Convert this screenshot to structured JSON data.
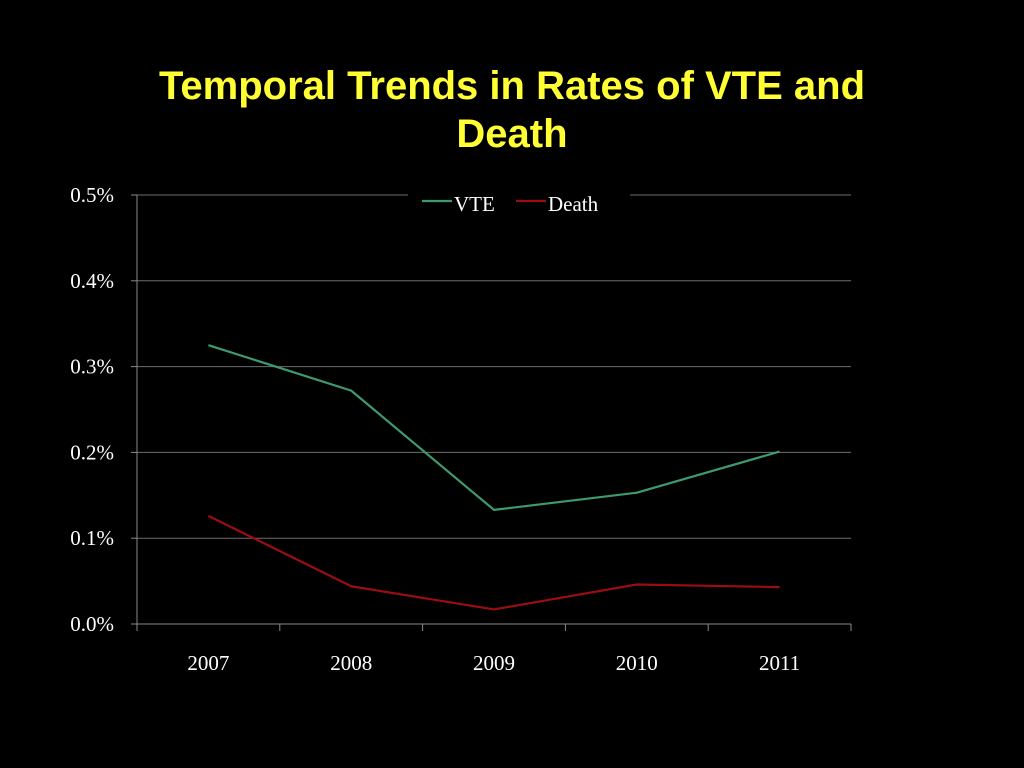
{
  "slide": {
    "title_line1": "Temporal Trends in Rates of VTE and",
    "title_line2": "Death",
    "title_color": "#ffff33"
  },
  "chart_data": {
    "type": "line",
    "title": "Temporal Trends in Rates of VTE and Death",
    "xlabel": "",
    "ylabel": "",
    "categories": [
      "2007",
      "2008",
      "2009",
      "2010",
      "2011"
    ],
    "ylim": [
      0,
      0.005
    ],
    "yticks": [
      "0.0%",
      "0.1%",
      "0.2%",
      "0.3%",
      "0.4%",
      "0.5%"
    ],
    "ytick_values": [
      0,
      0.001,
      0.002,
      0.003,
      0.004,
      0.005
    ],
    "grid": true,
    "legend_position": "top-center",
    "series": [
      {
        "name": "VTE",
        "color": "#3e9a6d",
        "values": [
          0.00325,
          0.00272,
          0.00133,
          0.00153,
          0.00201
        ]
      },
      {
        "name": "Death",
        "color": "#9a0e12",
        "values": [
          0.00126,
          0.00044,
          0.00017,
          0.00046,
          0.00043
        ]
      }
    ]
  }
}
